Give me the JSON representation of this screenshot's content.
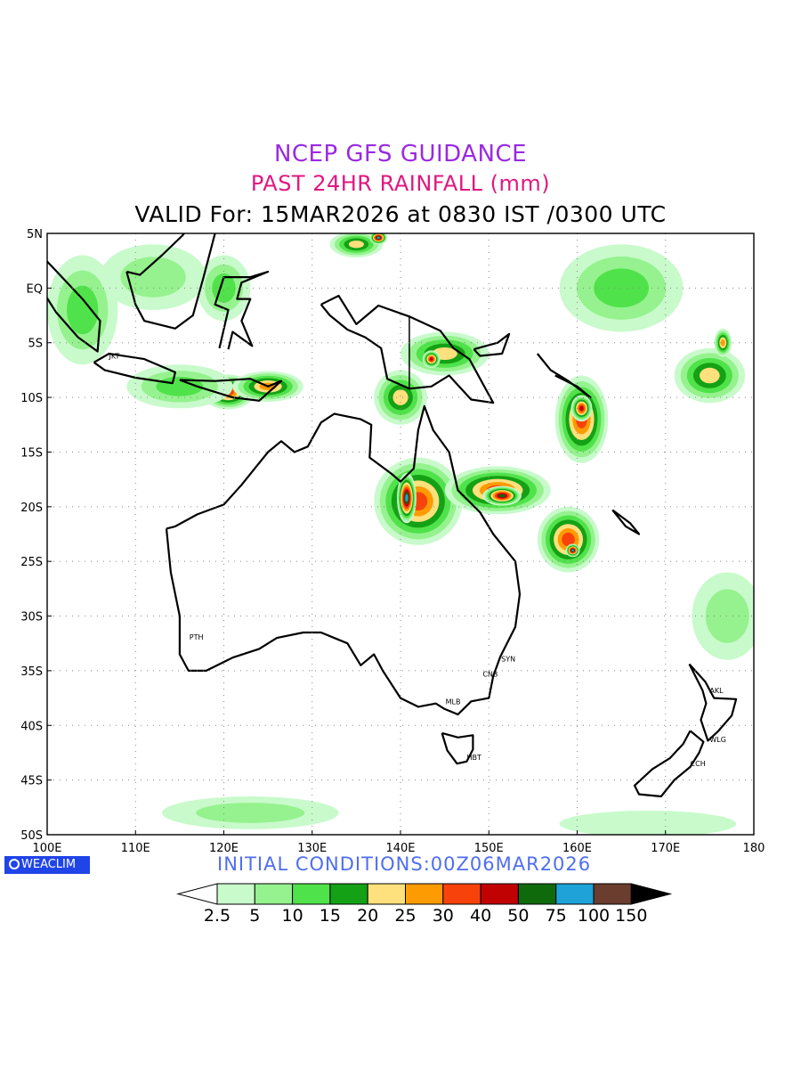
{
  "header": {
    "title": "NCEP GFS GUIDANCE",
    "subtitle": "PAST 24HR RAINFALL (mm)",
    "valid": "VALID For: 15MAR2026 at 0830 IST /0300 UTC"
  },
  "axes": {
    "lat_labels": [
      "5N",
      "EQ",
      "5S",
      "10S",
      "15S",
      "20S",
      "25S",
      "30S",
      "35S",
      "40S",
      "45S",
      "50S"
    ],
    "lon_labels": [
      "100E",
      "110E",
      "120E",
      "130E",
      "140E",
      "150E",
      "160E",
      "170E",
      "180"
    ]
  },
  "cities": [
    {
      "code": "JKT",
      "lon": 106.8,
      "lat": -6.2
    },
    {
      "code": "PTH",
      "lon": 115.9,
      "lat": -31.9
    },
    {
      "code": "SYN",
      "lon": 151.2,
      "lat": -33.9
    },
    {
      "code": "CNB",
      "lon": 149.1,
      "lat": -35.3
    },
    {
      "code": "MLB",
      "lon": 144.9,
      "lat": -37.8
    },
    {
      "code": "HBT",
      "lon": 147.3,
      "lat": -42.9
    },
    {
      "code": "AKL",
      "lon": 174.8,
      "lat": -36.8
    },
    {
      "code": "WLG",
      "lon": 174.8,
      "lat": -41.3
    },
    {
      "code": "CCH",
      "lon": 172.6,
      "lat": -43.5
    }
  ],
  "logo": {
    "text": "WEACLIM"
  },
  "initial_conditions": "INITIAL  CONDITIONS:00Z06MAR2026",
  "colorbar": {
    "labels": [
      "2.5",
      "5",
      "10",
      "15",
      "20",
      "25",
      "30",
      "40",
      "50",
      "75",
      "100",
      "150"
    ],
    "colors": [
      "#ffffff",
      "#c8facb",
      "#95f28e",
      "#50e24a",
      "#15a115",
      "#fee07d",
      "#fd9b02",
      "#f8420c",
      "#c10202",
      "#0f6a0b",
      "#1ea2d8",
      "#6a3d2e",
      "#000000"
    ]
  },
  "rain_areas": [
    {
      "lon": 120.5,
      "lat": -9.5,
      "rx": 3,
      "ry": 1.6,
      "level": 7
    },
    {
      "lon": 125,
      "lat": -9,
      "rx": 4,
      "ry": 1.4,
      "level": 6
    },
    {
      "lon": 115,
      "lat": -9,
      "rx": 6,
      "ry": 2,
      "level": 3
    },
    {
      "lon": 104,
      "lat": -2,
      "rx": 4,
      "ry": 5,
      "level": 3
    },
    {
      "lon": 112,
      "lat": 1,
      "rx": 6,
      "ry": 3,
      "level": 2
    },
    {
      "lon": 120,
      "lat": 0,
      "rx": 3,
      "ry": 3,
      "level": 3
    },
    {
      "lon": 135,
      "lat": 4,
      "rx": 3,
      "ry": 1.2,
      "level": 5
    },
    {
      "lon": 137.5,
      "lat": 4.6,
      "rx": 1,
      "ry": 0.6,
      "level": 10
    },
    {
      "lon": 145,
      "lat": -6,
      "rx": 5,
      "ry": 2,
      "level": 5
    },
    {
      "lon": 143.5,
      "lat": -6.5,
      "rx": 1,
      "ry": 0.8,
      "level": 8
    },
    {
      "lon": 140,
      "lat": -10,
      "rx": 3,
      "ry": 2.5,
      "level": 5
    },
    {
      "lon": 142,
      "lat": -19.5,
      "rx": 5,
      "ry": 4,
      "level": 7
    },
    {
      "lon": 140.7,
      "lat": -19.2,
      "rx": 1.1,
      "ry": 2.3,
      "level": 10
    },
    {
      "lon": 151,
      "lat": -18.5,
      "rx": 6,
      "ry": 2.2,
      "level": 7
    },
    {
      "lon": 151.5,
      "lat": -19,
      "rx": 2.2,
      "ry": 0.9,
      "level": 9
    },
    {
      "lon": 159,
      "lat": -23,
      "rx": 3.5,
      "ry": 3,
      "level": 7
    },
    {
      "lon": 159.5,
      "lat": -24,
      "rx": 0.8,
      "ry": 0.6,
      "level": 10
    },
    {
      "lon": 160.5,
      "lat": -12,
      "rx": 3,
      "ry": 4,
      "level": 7
    },
    {
      "lon": 160.5,
      "lat": -11,
      "rx": 1.2,
      "ry": 1.2,
      "level": 8
    },
    {
      "lon": 175,
      "lat": -8,
      "rx": 4,
      "ry": 2.5,
      "level": 5
    },
    {
      "lon": 176.5,
      "lat": -5,
      "rx": 1,
      "ry": 1.3,
      "level": 6
    },
    {
      "lon": 165,
      "lat": 0,
      "rx": 7,
      "ry": 4,
      "level": 3
    },
    {
      "lon": 177,
      "lat": -30,
      "rx": 4,
      "ry": 4,
      "level": 2
    },
    {
      "lon": 123,
      "lat": -48,
      "rx": 10,
      "ry": 1.5,
      "level": 2
    },
    {
      "lon": 168,
      "lat": -49,
      "rx": 10,
      "ry": 1.2,
      "level": 1
    }
  ]
}
